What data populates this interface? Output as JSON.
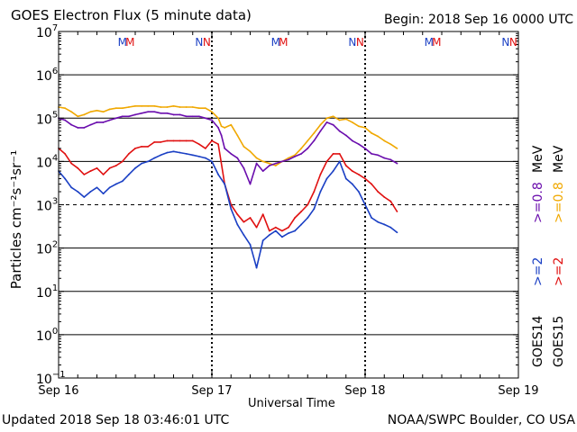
{
  "header": {
    "title": "GOES Electron Flux (5 minute data)",
    "begin": "Begin: 2018 Sep 16 0000 UTC"
  },
  "footer": {
    "updated": "Updated 2018 Sep 18 03:46:01 UTC",
    "credit": "NOAA/SWPC Boulder, CO USA"
  },
  "colors": {
    "goes14_lo": "#6a0dad",
    "goes15_lo": "#f0a800",
    "goes14_hi": "#1a3fc4",
    "goes15_hi": "#e01010"
  },
  "chart_data": {
    "type": "line",
    "title": "GOES Electron Flux (5 minute data)",
    "xlabel": "Universal Time",
    "ylabel": "Particles cm⁻²s⁻¹sr⁻¹",
    "yscale": "log",
    "ylim": [
      0.1,
      10000000
    ],
    "xlim": [
      0,
      72
    ],
    "x_units": "hours since 2018 Sep 16 0000 UTC",
    "y_ticks": [
      {
        "value": 0.1,
        "base": "10",
        "exp": "−1"
      },
      {
        "value": 1,
        "base": "10",
        "exp": "0"
      },
      {
        "value": 10,
        "base": "10",
        "exp": "1"
      },
      {
        "value": 100,
        "base": "10",
        "exp": "2"
      },
      {
        "value": 1000,
        "base": "10",
        "exp": "3"
      },
      {
        "value": 10000,
        "base": "10",
        "exp": "4"
      },
      {
        "value": 100000,
        "base": "10",
        "exp": "5"
      },
      {
        "value": 1000000,
        "base": "10",
        "exp": "6"
      },
      {
        "value": 10000000,
        "base": "10",
        "exp": "7"
      }
    ],
    "x_ticks": [
      {
        "x": 0,
        "label": "Sep 16"
      },
      {
        "x": 24,
        "label": "Sep 17"
      },
      {
        "x": 48,
        "label": "Sep 18"
      },
      {
        "x": 72,
        "label": "Sep 19"
      }
    ],
    "threshold": {
      "value": 1000,
      "style": "dashed"
    },
    "markers": [
      {
        "x": 10.0,
        "label": "M",
        "color": "#1a3fc4"
      },
      {
        "x": 11.2,
        "label": "M",
        "color": "#e01010"
      },
      {
        "x": 22.0,
        "label": "N",
        "color": "#1a3fc4"
      },
      {
        "x": 23.2,
        "label": "N",
        "color": "#e01010"
      },
      {
        "x": 34.0,
        "label": "M",
        "color": "#1a3fc4"
      },
      {
        "x": 35.2,
        "label": "M",
        "color": "#e01010"
      },
      {
        "x": 46.0,
        "label": "N",
        "color": "#1a3fc4"
      },
      {
        "x": 47.2,
        "label": "N",
        "color": "#e01010"
      },
      {
        "x": 58.0,
        "label": "M",
        "color": "#1a3fc4"
      },
      {
        "x": 59.2,
        "label": "M",
        "color": "#e01010"
      },
      {
        "x": 70.0,
        "label": "N",
        "color": "#1a3fc4"
      },
      {
        "x": 71.2,
        "label": "N",
        "color": "#e01010"
      }
    ],
    "right_labels": {
      "goes14": "GOES14",
      "goes15": "GOES15",
      "goes14_hi": ">=2",
      "goes15_hi": ">=2",
      "goes14_lo": ">=0.8",
      "goes15_lo": ">=0.8",
      "unit": "MeV"
    },
    "series": [
      {
        "name": "GOES15 >=0.8 MeV",
        "color": "#f0a800",
        "x": [
          0,
          1,
          2,
          3,
          4,
          5,
          6,
          7,
          8,
          9,
          10,
          11,
          12,
          13,
          14,
          15,
          16,
          17,
          18,
          19,
          20,
          21,
          22,
          23,
          24,
          25,
          25.5,
          26,
          27,
          28,
          29,
          30,
          31,
          32,
          33,
          34,
          35,
          36,
          37,
          38,
          39,
          40,
          41,
          42,
          43,
          44,
          45,
          46,
          47,
          48,
          49,
          50,
          51,
          52,
          53
        ],
        "y": [
          180000,
          170000,
          140000,
          110000,
          120000,
          140000,
          150000,
          140000,
          160000,
          170000,
          170000,
          180000,
          190000,
          190000,
          190000,
          190000,
          180000,
          180000,
          190000,
          180000,
          180000,
          180000,
          170000,
          170000,
          140000,
          100000,
          65000,
          60000,
          70000,
          40000,
          22000,
          17000,
          12000,
          10000,
          9000,
          8000,
          10000,
          12000,
          14000,
          20000,
          30000,
          45000,
          70000,
          100000,
          110000,
          90000,
          95000,
          80000,
          65000,
          60000,
          45000,
          38000,
          30000,
          25000,
          20000
        ]
      },
      {
        "name": "GOES14 >=0.8 MeV",
        "color": "#6a0dad",
        "x": [
          0,
          1,
          2,
          3,
          4,
          5,
          6,
          7,
          8,
          9,
          10,
          11,
          12,
          13,
          14,
          15,
          16,
          17,
          18,
          19,
          20,
          21,
          22,
          23,
          24,
          25,
          25.5,
          26,
          27,
          28,
          29,
          30,
          31,
          32,
          33,
          34,
          35,
          36,
          37,
          38,
          39,
          40,
          41,
          42,
          43,
          44,
          45,
          46,
          47,
          48,
          49,
          50,
          51,
          52,
          53
        ],
        "y": [
          100000,
          90000,
          70000,
          60000,
          60000,
          70000,
          80000,
          80000,
          90000,
          100000,
          110000,
          110000,
          120000,
          130000,
          140000,
          140000,
          130000,
          130000,
          120000,
          120000,
          110000,
          110000,
          110000,
          100000,
          90000,
          60000,
          40000,
          20000,
          15000,
          12000,
          7000,
          3000,
          9000,
          6000,
          8000,
          9000,
          10000,
          11000,
          13000,
          15000,
          20000,
          30000,
          50000,
          80000,
          70000,
          50000,
          40000,
          30000,
          25000,
          20000,
          15000,
          14000,
          12000,
          11000,
          9000
        ]
      },
      {
        "name": "GOES15 >=2 MeV",
        "color": "#e01010",
        "x": [
          0,
          1,
          2,
          3,
          4,
          5,
          6,
          7,
          8,
          9,
          10,
          11,
          12,
          13,
          14,
          15,
          16,
          17,
          18,
          19,
          20,
          21,
          22,
          23,
          24,
          25,
          26,
          27,
          28,
          29,
          30,
          31,
          32,
          33,
          34,
          35,
          36,
          37,
          38,
          39,
          40,
          41,
          42,
          43,
          44,
          45,
          46,
          47,
          48,
          49,
          50,
          51,
          52,
          53
        ],
        "y": [
          20000,
          15000,
          9000,
          7000,
          5000,
          6000,
          7000,
          5000,
          7000,
          8000,
          10000,
          15000,
          20000,
          22000,
          22000,
          28000,
          28000,
          30000,
          30000,
          30000,
          30000,
          30000,
          25000,
          20000,
          30000,
          25000,
          3000,
          1000,
          600,
          400,
          500,
          300,
          600,
          250,
          300,
          250,
          300,
          500,
          700,
          1000,
          2000,
          5000,
          10000,
          15000,
          15000,
          8000,
          6000,
          5000,
          4000,
          3000,
          2000,
          1500,
          1200,
          700
        ]
      },
      {
        "name": "GOES14 >=2 MeV",
        "color": "#1a3fc4",
        "x": [
          0,
          1,
          2,
          3,
          4,
          5,
          6,
          7,
          8,
          9,
          10,
          11,
          12,
          13,
          14,
          15,
          16,
          17,
          18,
          19,
          20,
          21,
          22,
          23,
          24,
          25,
          26,
          27,
          28,
          29,
          30,
          31,
          32,
          33,
          34,
          35,
          36,
          37,
          38,
          39,
          40,
          41,
          42,
          43,
          44,
          45,
          46,
          47,
          48,
          49,
          50,
          51,
          52,
          53
        ],
        "y": [
          6000,
          4000,
          2500,
          2000,
          1500,
          2000,
          2500,
          1800,
          2500,
          3000,
          3500,
          5000,
          7000,
          9000,
          10000,
          12000,
          14000,
          16000,
          17000,
          16000,
          15000,
          14000,
          13000,
          12000,
          10000,
          5000,
          3000,
          800,
          350,
          200,
          120,
          35,
          150,
          200,
          250,
          180,
          220,
          250,
          350,
          500,
          800,
          2000,
          4000,
          6000,
          10000,
          4000,
          3000,
          2000,
          1000,
          500,
          400,
          350,
          300,
          230
        ]
      }
    ]
  }
}
